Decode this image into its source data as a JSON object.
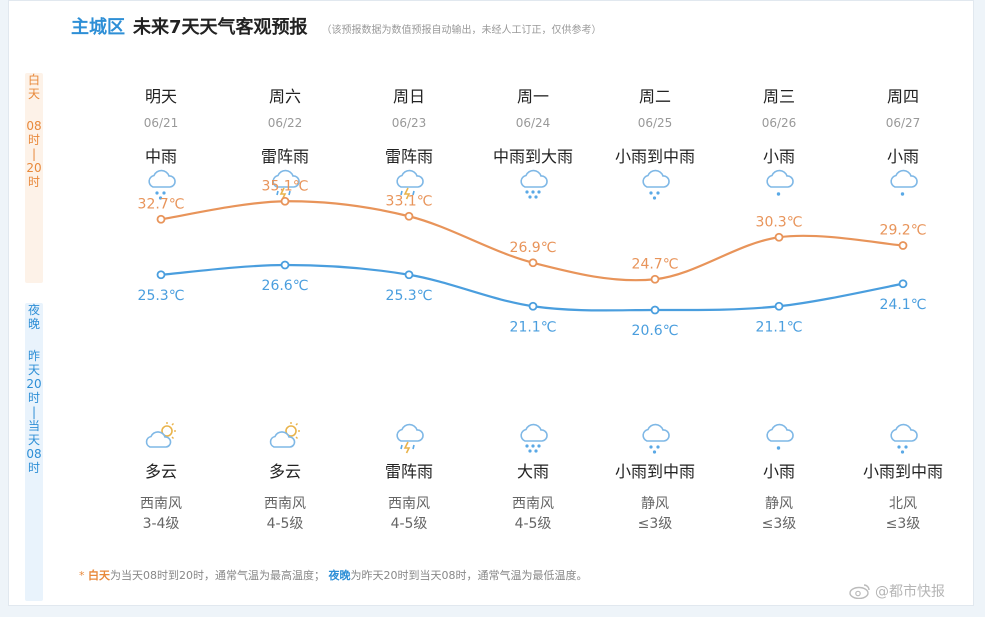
{
  "header": {
    "region": "主城区",
    "title": "未来7天天气客观预报",
    "note": "（该预报数据为数值预报自动输出，未经人工订正，仅供参考）"
  },
  "side_labels": {
    "day_word": [
      "白",
      "天"
    ],
    "day_range": [
      "08",
      "时",
      "|",
      "20",
      "时"
    ],
    "night_word": [
      "夜",
      "晚"
    ],
    "night_range": [
      "昨",
      "天",
      "20",
      "时",
      "|",
      "当",
      "天",
      "08",
      "时"
    ]
  },
  "days": [
    {
      "name": "明天",
      "date": "06/21",
      "day_weather": "中雨",
      "day_icon": "rain-cloud-icon",
      "night_icon": "partly-cloudy-icon",
      "night_weather": "多云",
      "wind_dir": "西南风",
      "wind_level": "3-4级"
    },
    {
      "name": "周六",
      "date": "06/22",
      "day_weather": "雷阵雨",
      "day_icon": "thunder-rain-icon",
      "night_icon": "partly-cloudy-icon",
      "night_weather": "多云",
      "wind_dir": "西南风",
      "wind_level": "4-5级"
    },
    {
      "name": "周日",
      "date": "06/23",
      "day_weather": "雷阵雨",
      "day_icon": "thunder-rain-icon",
      "night_icon": "thunder-rain-icon",
      "night_weather": "雷阵雨",
      "wind_dir": "西南风",
      "wind_level": "4-5级"
    },
    {
      "name": "周一",
      "date": "06/24",
      "day_weather": "中雨到大雨",
      "day_icon": "heavy-rain-icon",
      "night_icon": "heavy-rain-icon",
      "night_weather": "大雨",
      "wind_dir": "西南风",
      "wind_level": "4-5级"
    },
    {
      "name": "周二",
      "date": "06/25",
      "day_weather": "小雨到中雨",
      "day_icon": "rain-cloud-icon",
      "night_icon": "rain-cloud-icon",
      "night_weather": "小雨到中雨",
      "wind_dir": "静风",
      "wind_level": "≤3级"
    },
    {
      "name": "周三",
      "date": "06/26",
      "day_weather": "小雨",
      "day_icon": "light-rain-icon",
      "night_icon": "light-rain-icon",
      "night_weather": "小雨",
      "wind_dir": "静风",
      "wind_level": "≤3级"
    },
    {
      "name": "周四",
      "date": "06/27",
      "day_weather": "小雨",
      "day_icon": "light-rain-icon",
      "night_icon": "rain-cloud-icon",
      "night_weather": "小雨到中雨",
      "wind_dir": "北风",
      "wind_level": "≤3级"
    }
  ],
  "chart_data": {
    "type": "line",
    "categories": [
      "06/21",
      "06/22",
      "06/23",
      "06/24",
      "06/25",
      "06/26",
      "06/27"
    ],
    "series": [
      {
        "values": [
          32.7,
          35.1,
          33.1,
          26.9,
          24.7,
          30.3,
          29.2
        ],
        "labels": [
          "32.7℃",
          "35.1℃",
          "33.1℃",
          "26.9℃",
          "24.7℃",
          "30.3℃",
          "29.2℃"
        ],
        "color": "#e8945a"
      },
      {
        "values": [
          25.3,
          26.6,
          25.3,
          21.1,
          20.6,
          21.1,
          24.1
        ],
        "labels": [
          "25.3℃",
          "26.6℃",
          "25.3℃",
          "21.1℃",
          "20.6℃",
          "21.1℃",
          "24.1℃"
        ],
        "color": "#4a9ede"
      }
    ]
  },
  "footnote": {
    "star": "*",
    "day_word": "白天",
    "day_text": "为当天08时到20时，通常气温为最高温度；",
    "night_word": "夜晚",
    "night_text": "为昨天20时到当天08时，通常气温为最低温度。"
  },
  "watermark": "@都市快报",
  "colors": {
    "accent": "#2e8fd6",
    "day": "#e8893b",
    "icon": "#7fb8e6"
  }
}
